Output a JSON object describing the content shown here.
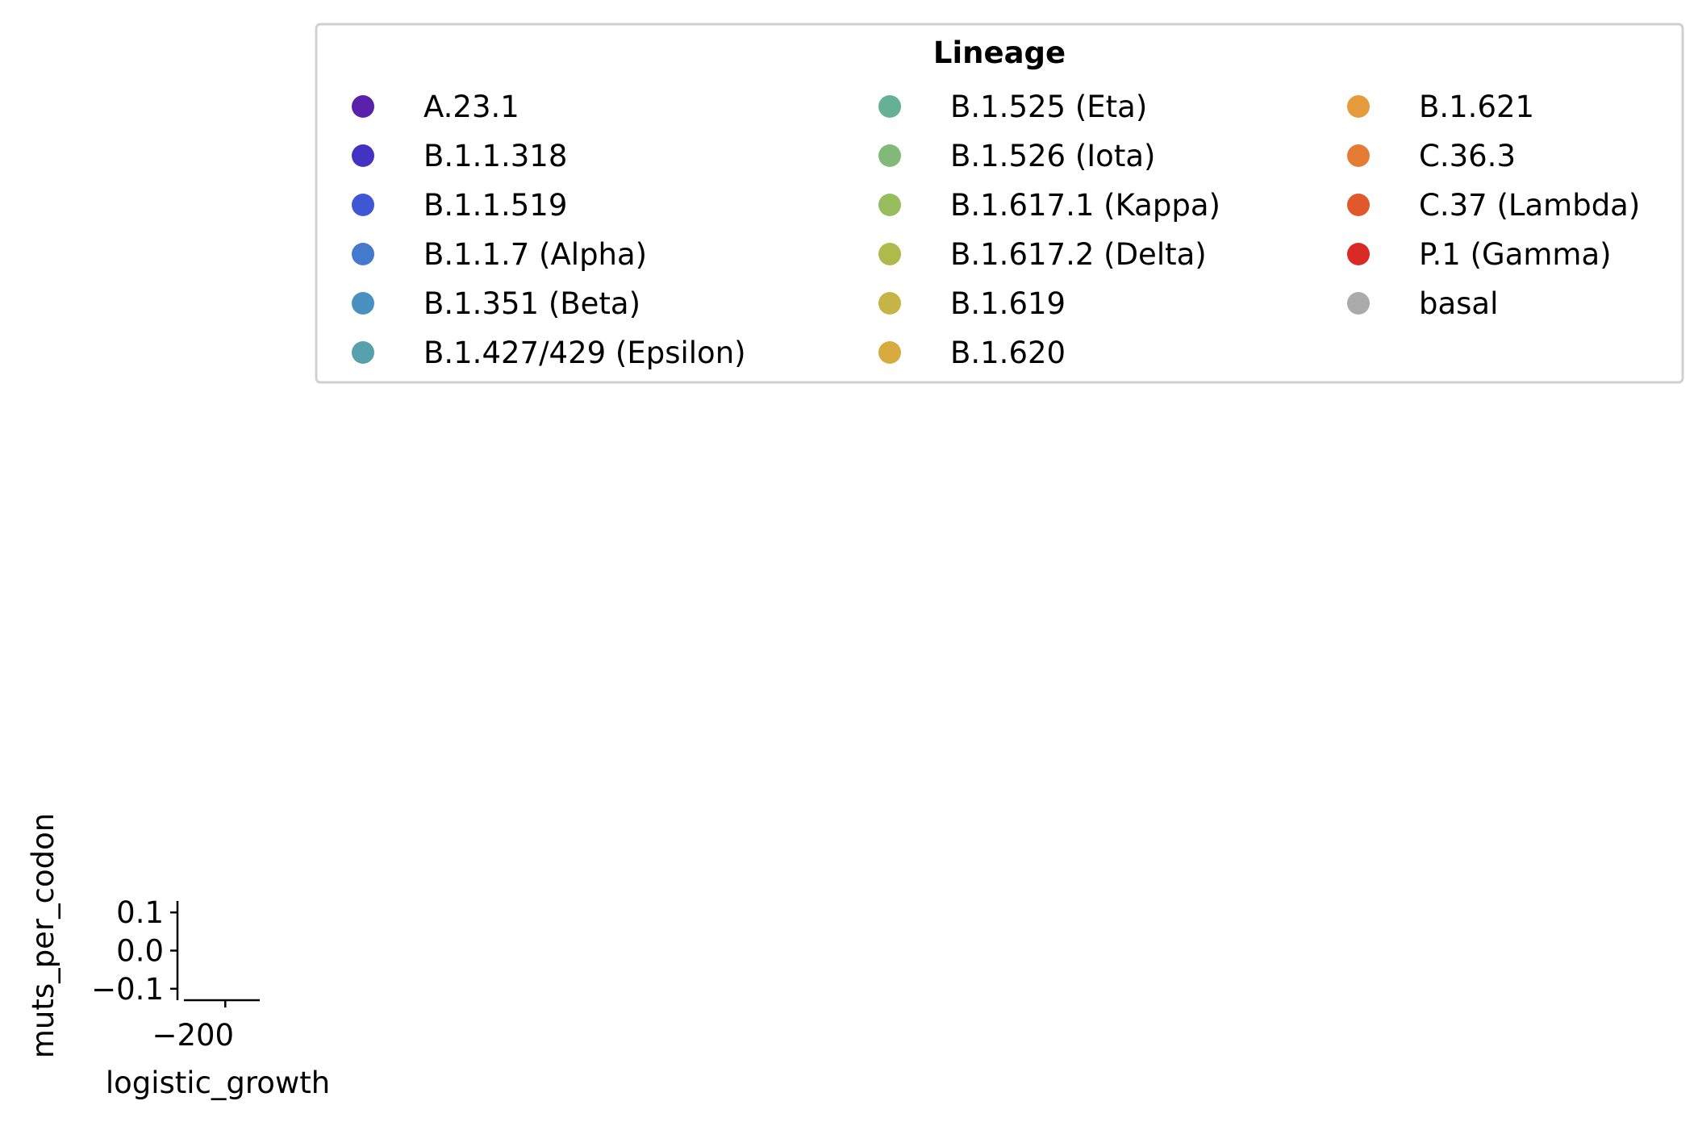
{
  "chart_data": {
    "type": "scatter",
    "title": "",
    "xlabel": "logistic_growth",
    "ylabel": "muts_per_codon",
    "xlim": [
      -218,
      -185
    ],
    "ylim": [
      -0.13,
      0.13
    ],
    "x_ticks": [
      -200
    ],
    "x_tick_labels": [
      "−200"
    ],
    "y_ticks": [
      0.1,
      0.0,
      -0.1
    ],
    "y_tick_labels": [
      "0.1",
      "0.0",
      "−0.1"
    ],
    "grid": false,
    "legend": {
      "title": "Lineage",
      "placement": "top",
      "columns": 3,
      "entries": [
        {
          "name": "A.23.1",
          "color": "#5a22aa"
        },
        {
          "name": "B.1.1.318",
          "color": "#4433c2"
        },
        {
          "name": "B.1.1.519",
          "color": "#3f57d3"
        },
        {
          "name": "B.1.1.7 (Alpha)",
          "color": "#4479cb"
        },
        {
          "name": "B.1.351 (Beta)",
          "color": "#4890c0"
        },
        {
          "name": "B.1.427/429 (Epsilon)",
          "color": "#56a1ad"
        },
        {
          "name": "B.1.525 (Eta)",
          "color": "#66b095"
        },
        {
          "name": "B.1.526 (Iota)",
          "color": "#80b978"
        },
        {
          "name": "B.1.617.1 (Kappa)",
          "color": "#97bd5f"
        },
        {
          "name": "B.1.617.2 (Delta)",
          "color": "#aeba4c"
        },
        {
          "name": "B.1.619",
          "color": "#c6b546"
        },
        {
          "name": "B.1.620",
          "color": "#d8ab40"
        },
        {
          "name": "B.1.621",
          "color": "#e59a3b"
        },
        {
          "name": "C.36.3",
          "color": "#e57c34"
        },
        {
          "name": "C.37 (Lambda)",
          "color": "#e1582c"
        },
        {
          "name": "P.1 (Gamma)",
          "color": "#da2a25"
        },
        {
          "name": "basal",
          "color": "#aaaaaa"
        }
      ]
    },
    "series": []
  }
}
